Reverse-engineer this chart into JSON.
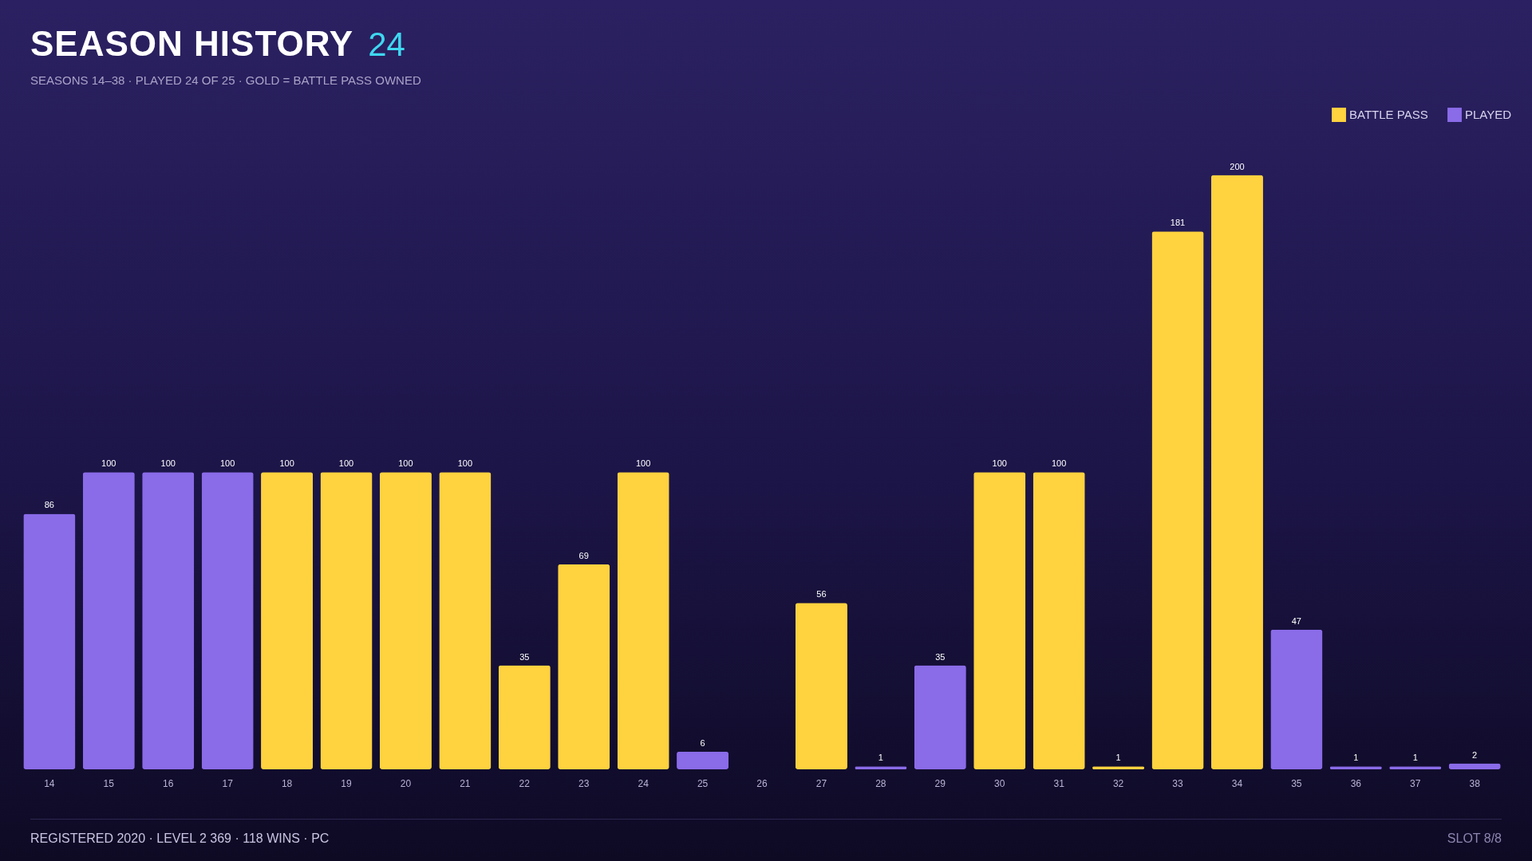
{
  "chart_data": {
    "type": "bar",
    "title": "SEASON HISTORY",
    "subtitle": "SEASONS 14–38  ·  PLAYED 24 OF 25  ·  GOLD = BATTLE PASS OWNED",
    "categories": [
      "14",
      "15",
      "16",
      "17",
      "18",
      "19",
      "20",
      "21",
      "22",
      "23",
      "24",
      "25",
      "26",
      "27",
      "28",
      "29",
      "30",
      "31",
      "32",
      "33",
      "34",
      "35",
      "36",
      "37",
      "38"
    ],
    "series": [
      {
        "name": "BATTLE PASS",
        "color": "#ffd23f",
        "values": [
          null,
          null,
          null,
          null,
          100,
          100,
          100,
          100,
          35,
          69,
          100,
          null,
          null,
          56,
          null,
          null,
          100,
          100,
          1,
          181,
          200,
          null,
          null,
          null,
          null
        ]
      },
      {
        "name": "PLAYED",
        "color": "#8a6be8",
        "values": [
          86,
          100,
          100,
          100,
          null,
          null,
          null,
          null,
          null,
          null,
          null,
          6,
          null,
          null,
          1,
          35,
          null,
          null,
          null,
          null,
          null,
          47,
          1,
          1,
          2
        ]
      }
    ],
    "data_labels": true,
    "legend": "top right",
    "grid": false,
    "annotations": [
      "24",
      "REGISTERED 2020  ·  LEVEL 2 369  ·  118 WINS  ·  PC",
      "SLOT 8/8"
    ]
  }
}
